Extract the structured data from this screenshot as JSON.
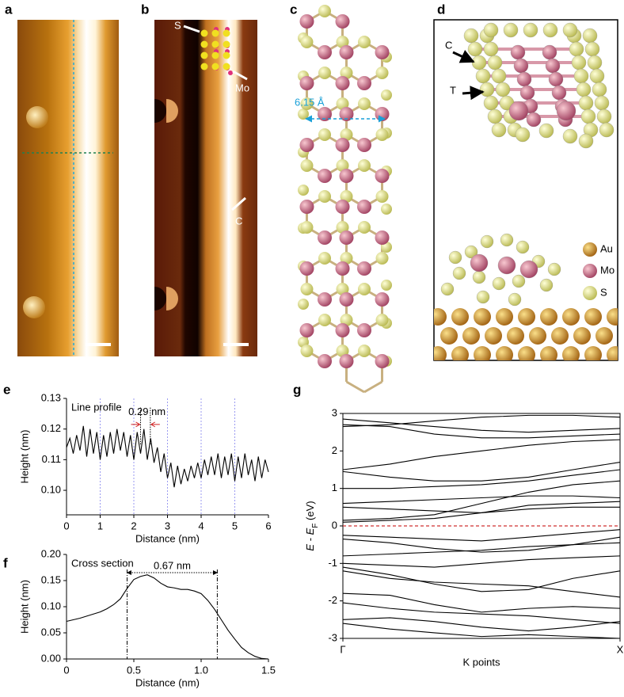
{
  "panels": [
    "a",
    "b",
    "c",
    "d",
    "e",
    "f",
    "g"
  ],
  "images": {
    "b": [
      "S",
      "Mo",
      "C"
    ],
    "c": "6.15 Å",
    "d": [
      "C",
      "T",
      "Au",
      "Mo",
      "S"
    ]
  },
  "chart_data": [
    {
      "type": "line",
      "xlabel": "Distance (nm)",
      "ylabel": "Height (nm)",
      "annotations": [
        "Line profile",
        "0.29 nm"
      ],
      "xlim": [
        0,
        6
      ],
      "ylim": [
        0.092,
        0.13
      ],
      "xticks": [
        0,
        1,
        2,
        3,
        4,
        5,
        6
      ],
      "yticks": [
        {
          "value": 0.1,
          "label": "0.10"
        },
        0.11,
        0.12,
        0.13
      ],
      "guide_lines": [
        1,
        2,
        3,
        4,
        5
      ],
      "guide_color": "#9a9af0",
      "spacing_marks": [
        2.2,
        2.49
      ],
      "color": "#000000",
      "x": [
        0,
        0.1,
        0.2,
        0.3,
        0.4,
        0.5,
        0.6,
        0.7,
        0.8,
        0.9,
        1,
        1.1,
        1.2,
        1.3,
        1.4,
        1.5,
        1.6,
        1.7,
        1.8,
        1.9,
        2,
        2.1,
        2.2,
        2.3,
        2.4,
        2.5,
        2.6,
        2.7,
        2.8,
        2.9,
        3,
        3.1,
        3.2,
        3.3,
        3.4,
        3.5,
        3.6,
        3.7,
        3.8,
        3.9,
        4,
        4.1,
        4.2,
        4.3,
        4.4,
        4.5,
        4.6,
        4.7,
        4.8,
        4.9,
        5,
        5.1,
        5.2,
        5.3,
        5.4,
        5.5,
        5.6,
        5.7,
        5.8,
        5.9,
        6
      ],
      "values": [
        0.114,
        0.117,
        0.112,
        0.118,
        0.113,
        0.121,
        0.111,
        0.12,
        0.112,
        0.119,
        0.11,
        0.118,
        0.111,
        0.119,
        0.112,
        0.12,
        0.113,
        0.119,
        0.111,
        0.118,
        0.11,
        0.119,
        0.112,
        0.12,
        0.11,
        0.117,
        0.109,
        0.114,
        0.106,
        0.112,
        0.104,
        0.109,
        0.101,
        0.108,
        0.102,
        0.107,
        0.103,
        0.108,
        0.104,
        0.109,
        0.104,
        0.11,
        0.105,
        0.111,
        0.105,
        0.112,
        0.104,
        0.111,
        0.105,
        0.112,
        0.103,
        0.111,
        0.104,
        0.112,
        0.105,
        0.11,
        0.103,
        0.111,
        0.104,
        0.11,
        0.106
      ]
    },
    {
      "type": "line",
      "xlabel": "Distance (nm)",
      "ylabel": "Height (nm)",
      "annotations": [
        "Cross section",
        "0.67 nm"
      ],
      "xlim": [
        0,
        1.5
      ],
      "ylim": [
        0,
        0.2
      ],
      "xticks": [
        0,
        0.5,
        {
          "value": 1,
          "label": "1.0"
        },
        1.5
      ],
      "yticks": [
        {
          "value": 0,
          "label": "0.00"
        },
        0.05,
        {
          "value": 0.1,
          "label": "0.10"
        },
        0.15,
        {
          "value": 0.2,
          "label": "0.20"
        }
      ],
      "marker_x": [
        0.45,
        1.12
      ],
      "color": "#000000",
      "x": [
        0,
        0.05,
        0.1,
        0.15,
        0.2,
        0.25,
        0.3,
        0.35,
        0.4,
        0.45,
        0.5,
        0.55,
        0.6,
        0.65,
        0.7,
        0.75,
        0.8,
        0.85,
        0.9,
        0.95,
        1,
        1.05,
        1.1,
        1.15,
        1.2,
        1.25,
        1.3,
        1.35,
        1.4,
        1.45,
        1.5
      ],
      "values": [
        0.072,
        0.075,
        0.078,
        0.082,
        0.086,
        0.09,
        0.096,
        0.104,
        0.115,
        0.135,
        0.152,
        0.158,
        0.161,
        0.155,
        0.145,
        0.138,
        0.136,
        0.133,
        0.133,
        0.13,
        0.125,
        0.112,
        0.095,
        0.075,
        0.055,
        0.038,
        0.022,
        0.012,
        0.005,
        0.001,
        0
      ]
    },
    {
      "type": "line",
      "xlabel": "K points",
      "ylabel": [
        "E",
        " - ",
        "E",
        "F",
        " (eV)"
      ],
      "xlim": [
        0,
        1
      ],
      "ylim": [
        -3,
        3
      ],
      "xticks": [
        {
          "value": 0,
          "label": "Γ"
        },
        {
          "value": 1,
          "label": "X"
        }
      ],
      "yticks": [
        -3,
        -2,
        -1,
        0,
        1,
        2,
        3
      ],
      "frame": "full",
      "fermi_level": 0,
      "fermi_color": "#d03030",
      "x": [
        0,
        0.17,
        0.33,
        0.5,
        0.67,
        0.83,
        1
      ],
      "series": [
        {
          "color": "#000000",
          "values": [
            2.85,
            2.75,
            2.65,
            2.55,
            2.5,
            2.55,
            2.6
          ]
        },
        {
          "color": "#000000",
          "values": [
            2.7,
            2.65,
            2.45,
            2.35,
            2.35,
            2.4,
            2.45
          ]
        },
        {
          "color": "#000000",
          "values": [
            2.65,
            2.7,
            2.8,
            2.9,
            2.95,
            2.95,
            2.9
          ]
        },
        {
          "color": "#000000",
          "values": [
            1.5,
            1.65,
            1.85,
            2.0,
            2.15,
            2.25,
            2.3
          ]
        },
        {
          "color": "#000000",
          "values": [
            1.45,
            1.3,
            1.2,
            1.2,
            1.3,
            1.5,
            1.7
          ]
        },
        {
          "color": "#000000",
          "values": [
            1.0,
            1.0,
            1.05,
            1.1,
            1.2,
            1.35,
            1.5
          ]
        },
        {
          "color": "#000000",
          "values": [
            0.6,
            0.65,
            0.7,
            0.75,
            0.8,
            0.8,
            0.75
          ]
        },
        {
          "color": "#000000",
          "values": [
            0.5,
            0.45,
            0.4,
            0.35,
            0.55,
            0.6,
            0.65
          ]
        },
        {
          "color": "#000000",
          "values": [
            0.15,
            0.2,
            0.3,
            0.6,
            0.9,
            1.1,
            1.2
          ]
        },
        {
          "color": "#000000",
          "values": [
            0.1,
            0.15,
            0.2,
            0.35,
            0.45,
            0.5,
            0.5
          ]
        },
        {
          "color": "#000000",
          "values": [
            -0.25,
            -0.3,
            -0.35,
            -0.4,
            -0.3,
            -0.2,
            -0.1
          ]
        },
        {
          "color": "#000000",
          "values": [
            -0.35,
            -0.45,
            -0.6,
            -0.7,
            -0.65,
            -0.5,
            -0.3
          ]
        },
        {
          "color": "#000000",
          "values": [
            -0.8,
            -0.75,
            -0.7,
            -0.65,
            -0.55,
            -0.5,
            -0.45
          ]
        },
        {
          "color": "#000000",
          "values": [
            -1.0,
            -1.05,
            -1.1,
            -1.0,
            -0.9,
            -0.85,
            -0.8
          ]
        },
        {
          "color": "#000000",
          "values": [
            -1.1,
            -1.3,
            -1.55,
            -1.75,
            -1.7,
            -1.4,
            -1.2
          ]
        },
        {
          "color": "#000000",
          "values": [
            -1.2,
            -1.4,
            -1.5,
            -1.55,
            -1.6,
            -1.75,
            -1.9
          ]
        },
        {
          "color": "#000000",
          "values": [
            -1.8,
            -1.85,
            -2.1,
            -2.3,
            -2.2,
            -2.15,
            -2.2
          ]
        },
        {
          "color": "#000000",
          "values": [
            -2.05,
            -2.2,
            -2.3,
            -2.35,
            -2.4,
            -2.5,
            -2.6
          ]
        },
        {
          "color": "#000000",
          "values": [
            -2.5,
            -2.45,
            -2.55,
            -2.7,
            -2.8,
            -2.7,
            -2.55
          ]
        },
        {
          "color": "#000000",
          "values": [
            -2.6,
            -2.75,
            -2.85,
            -2.95,
            -2.9,
            -2.95,
            -3.0
          ]
        }
      ]
    }
  ]
}
